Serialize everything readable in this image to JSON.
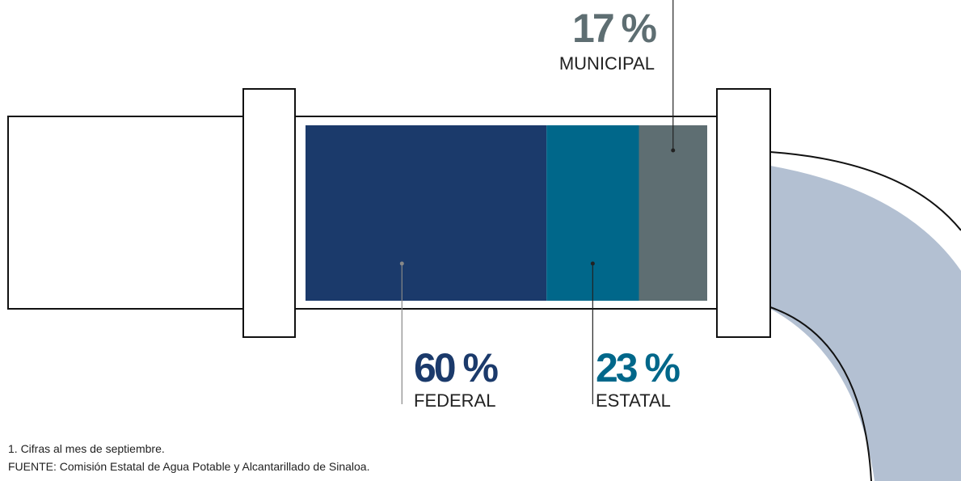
{
  "chart_data": {
    "type": "stacked-bar",
    "series": [
      {
        "name": "FEDERAL",
        "color": "#1b3a6b",
        "values": [
          60
        ],
        "value_labels": [
          "60 %"
        ]
      },
      {
        "name": "ESTATAL",
        "color": "#00678a",
        "values": [
          23
        ],
        "value_labels": [
          "23 %"
        ]
      },
      {
        "name": "MUNICIPAL",
        "color": "#5e6e72",
        "values": [
          17
        ],
        "value_labels": [
          "17 %"
        ]
      }
    ],
    "notes": [
      "1. Cifras al mes de septiembre.",
      "FUENTE: Comisión Estatal de Agua Potable y Alcantarillado de Sinaloa."
    ]
  }
}
